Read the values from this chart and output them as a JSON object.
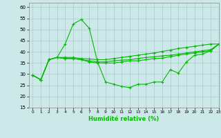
{
  "xlabel": "Humidité relative (%)",
  "xlim": [
    -0.5,
    23
  ],
  "ylim": [
    15,
    62
  ],
  "yticks": [
    15,
    20,
    25,
    30,
    35,
    40,
    45,
    50,
    55,
    60
  ],
  "xticks": [
    0,
    1,
    2,
    3,
    4,
    5,
    6,
    7,
    8,
    9,
    10,
    11,
    12,
    13,
    14,
    15,
    16,
    17,
    18,
    19,
    20,
    21,
    22,
    23
  ],
  "bg_color": "#cce8e8",
  "grid_color": "#aacccc",
  "line_color": "#00bb00",
  "y_spike": [
    29.5,
    27.5,
    36.5,
    37.5,
    43.5,
    52.5,
    54.5,
    50.5,
    35.5,
    26.5,
    25.5,
    24.5,
    24.0,
    25.5,
    25.5,
    26.5,
    26.5,
    32.0,
    30.5,
    35.5,
    38.5,
    39.0,
    40.5,
    43.5
  ],
  "y_flat_high": [
    29.5,
    27.5,
    36.5,
    37.5,
    37.5,
    37.5,
    37.0,
    36.8,
    36.5,
    36.5,
    37.0,
    37.5,
    38.0,
    38.5,
    39.0,
    39.5,
    40.2,
    40.8,
    41.5,
    42.0,
    42.5,
    43.0,
    43.5,
    43.5
  ],
  "y_flat_mid": [
    29.5,
    27.5,
    36.5,
    37.5,
    37.0,
    37.0,
    36.5,
    36.0,
    35.5,
    35.5,
    36.0,
    36.3,
    36.5,
    37.0,
    37.5,
    37.8,
    38.2,
    38.5,
    39.0,
    39.5,
    40.0,
    40.5,
    41.0,
    43.5
  ],
  "y_flat_low": [
    29.5,
    27.5,
    36.5,
    37.5,
    37.0,
    37.0,
    36.5,
    35.5,
    35.0,
    35.0,
    35.0,
    35.5,
    36.0,
    36.0,
    36.5,
    37.0,
    37.2,
    37.8,
    38.5,
    39.0,
    39.5,
    40.0,
    40.5,
    43.5
  ]
}
